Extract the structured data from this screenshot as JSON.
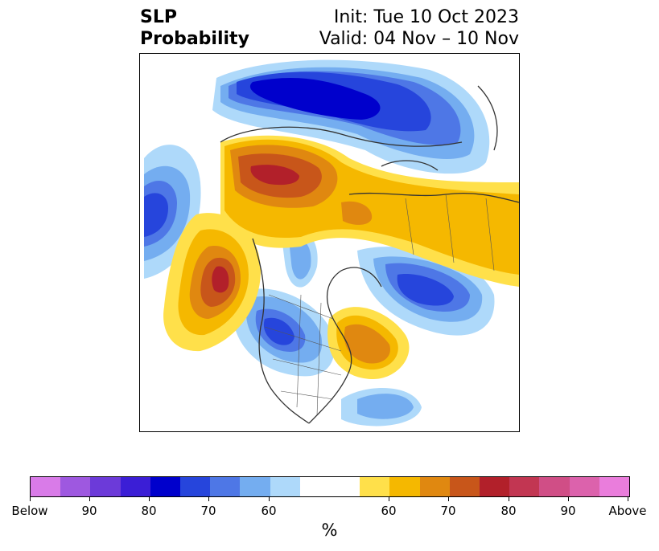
{
  "title": {
    "left_line1": "SLP",
    "left_line2": "Probability",
    "right_line1": "Init: Tue 10 Oct 2023",
    "right_line2": "Valid: 04 Nov – 10 Nov"
  },
  "colorbar": {
    "colors": [
      "#d97be8",
      "#9e58e0",
      "#6c3ad9",
      "#3b1ed6",
      "#0000cc",
      "#2645dc",
      "#4e77e6",
      "#74adf0",
      "#aed9fa",
      "#ffffff",
      "#ffffff",
      "#ffe04a",
      "#f5b800",
      "#e08810",
      "#c8561a",
      "#b2202a",
      "#c23652",
      "#d04e86",
      "#dc62ac",
      "#ea7ddc"
    ],
    "tick_labels": [
      "Below",
      "90",
      "80",
      "70",
      "60",
      "60",
      "70",
      "80",
      "90",
      "Above"
    ],
    "label": "%"
  },
  "map_features": {
    "below_color_strong": "#0000cc",
    "above_color_strong": "#b2202a"
  }
}
